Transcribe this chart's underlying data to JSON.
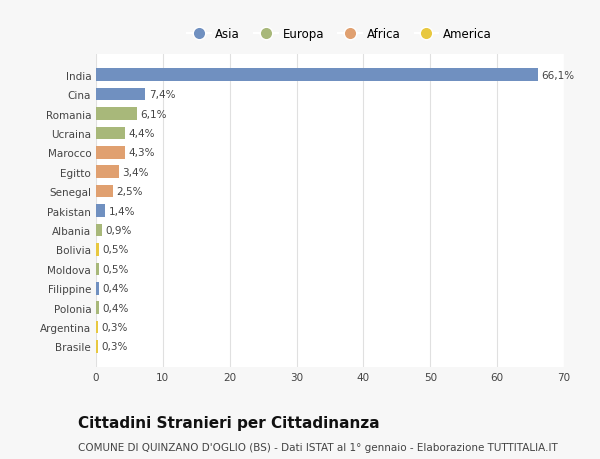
{
  "categories": [
    "India",
    "Cina",
    "Romania",
    "Ucraina",
    "Marocco",
    "Egitto",
    "Senegal",
    "Pakistan",
    "Albania",
    "Bolivia",
    "Moldova",
    "Filippine",
    "Polonia",
    "Argentina",
    "Brasile"
  ],
  "values": [
    66.1,
    7.4,
    6.1,
    4.4,
    4.3,
    3.4,
    2.5,
    1.4,
    0.9,
    0.5,
    0.5,
    0.4,
    0.4,
    0.3,
    0.3
  ],
  "labels": [
    "66,1%",
    "7,4%",
    "6,1%",
    "4,4%",
    "4,3%",
    "3,4%",
    "2,5%",
    "1,4%",
    "0,9%",
    "0,5%",
    "0,5%",
    "0,4%",
    "0,4%",
    "0,3%",
    "0,3%"
  ],
  "colors": [
    "#7090c0",
    "#7090c0",
    "#a8b87a",
    "#a8b87a",
    "#e0a070",
    "#e0a070",
    "#e0a070",
    "#7090c0",
    "#a8b87a",
    "#e8c840",
    "#a8b87a",
    "#7090c0",
    "#a8b87a",
    "#e8c840",
    "#e8c840"
  ],
  "legend_labels": [
    "Asia",
    "Europa",
    "Africa",
    "America"
  ],
  "legend_colors": [
    "#7090c0",
    "#a8b87a",
    "#e0a070",
    "#e8c840"
  ],
  "title": "Cittadini Stranieri per Cittadinanza",
  "subtitle": "COMUNE DI QUINZANO D'OGLIO (BS) - Dati ISTAT al 1° gennaio - Elaborazione TUTTITALIA.IT",
  "xlim": [
    0,
    70
  ],
  "xticks": [
    0,
    10,
    20,
    30,
    40,
    50,
    60,
    70
  ],
  "background_color": "#f7f7f7",
  "bar_background": "#ffffff",
  "grid_color": "#e0e0e0",
  "title_fontsize": 11,
  "subtitle_fontsize": 7.5,
  "label_fontsize": 7.5,
  "tick_fontsize": 7.5,
  "legend_fontsize": 8.5
}
